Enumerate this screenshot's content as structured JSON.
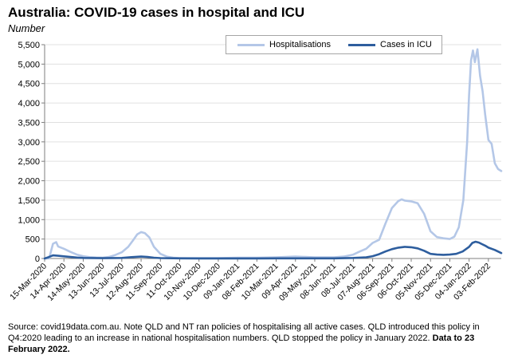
{
  "title": "Australia: COVID-19 cases in hospital and ICU",
  "subtitle": "Number",
  "source_text": "Source: covid19data.com.au.  Note QLD and NT ran policies of hospitalising all active cases. QLD introduced this policy in Q4:2020 leading to an increase in national hospitalisation numbers. QLD stopped the policy in January 2022. ",
  "source_bold": "Data to 23 February 2022.",
  "colors": {
    "hospital": "#b4c7e7",
    "icu": "#2e5e9e",
    "axis": "#7f7f7f",
    "grid": "#e0e0e0"
  },
  "chart_data": {
    "type": "line",
    "ylim": [
      0,
      5500
    ],
    "yticks": [
      "0",
      "500",
      "1,000",
      "1,500",
      "2,000",
      "2,500",
      "3,000",
      "3,500",
      "4,000",
      "4,500",
      "5,000",
      "5,500"
    ],
    "xlim": [
      "2020-03-15",
      "2022-02-23"
    ],
    "xticks": [
      "15-Mar-2020",
      "14-Apr-2020",
      "14-May-2020",
      "13-Jun-2020",
      "13-Jul-2020",
      "12-Aug-2020",
      "11-Sep-2020",
      "11-Oct-2020",
      "10-Nov-2020",
      "10-Dec-2020",
      "09-Jan-2021",
      "08-Feb-2021",
      "10-Mar-2021",
      "09-Apr-2021",
      "09-May-2021",
      "08-Jun-2021",
      "08-Jul-2021",
      "07-Aug-2021",
      "06-Sep-2021",
      "06-Oct-2021",
      "05-Nov-2021",
      "05-Dec-2021",
      "04-Jan-2022",
      "03-Feb-2022"
    ],
    "series": [
      {
        "name": "Hospitalisations",
        "x": [
          "2020-03-15",
          "2020-03-22",
          "2020-03-28",
          "2020-04-02",
          "2020-04-05",
          "2020-04-14",
          "2020-04-24",
          "2020-05-04",
          "2020-05-14",
          "2020-05-24",
          "2020-06-03",
          "2020-06-13",
          "2020-06-23",
          "2020-07-03",
          "2020-07-13",
          "2020-07-23",
          "2020-07-31",
          "2020-08-06",
          "2020-08-12",
          "2020-08-18",
          "2020-08-25",
          "2020-09-01",
          "2020-09-11",
          "2020-09-21",
          "2020-10-01",
          "2020-10-11",
          "2020-11-10",
          "2020-12-10",
          "2021-01-09",
          "2021-02-08",
          "2021-03-10",
          "2021-04-09",
          "2021-05-09",
          "2021-06-08",
          "2021-06-23",
          "2021-07-08",
          "2021-07-18",
          "2021-07-28",
          "2021-08-07",
          "2021-08-17",
          "2021-08-27",
          "2021-09-06",
          "2021-09-16",
          "2021-09-21",
          "2021-09-26",
          "2021-10-06",
          "2021-10-16",
          "2021-10-26",
          "2021-11-05",
          "2021-11-15",
          "2021-11-25",
          "2021-12-05",
          "2021-12-12",
          "2021-12-19",
          "2021-12-26",
          "2022-01-01",
          "2022-01-04",
          "2022-01-07",
          "2022-01-10",
          "2022-01-13",
          "2022-01-17",
          "2022-01-21",
          "2022-01-25",
          "2022-01-29",
          "2022-02-03",
          "2022-02-08",
          "2022-02-13",
          "2022-02-18",
          "2022-02-23"
        ],
        "y": [
          0,
          0,
          380,
          420,
          310,
          250,
          170,
          100,
          60,
          35,
          25,
          20,
          40,
          90,
          160,
          300,
          480,
          620,
          680,
          650,
          540,
          300,
          120,
          50,
          20,
          10,
          10,
          10,
          20,
          20,
          30,
          50,
          30,
          30,
          50,
          100,
          180,
          250,
          400,
          480,
          900,
          1300,
          1480,
          1520,
          1490,
          1470,
          1420,
          1150,
          700,
          550,
          520,
          500,
          560,
          800,
          1500,
          3000,
          4200,
          5100,
          5350,
          5050,
          5380,
          4700,
          4300,
          3700,
          3050,
          2950,
          2450,
          2300,
          2250
        ]
      },
      {
        "name": "Cases in ICU",
        "x": [
          "2020-03-15",
          "2020-03-22",
          "2020-03-28",
          "2020-04-05",
          "2020-04-14",
          "2020-04-24",
          "2020-05-04",
          "2020-05-14",
          "2020-06-13",
          "2020-07-13",
          "2020-07-28",
          "2020-08-12",
          "2020-08-22",
          "2020-09-01",
          "2020-09-11",
          "2020-10-11",
          "2020-11-10",
          "2020-12-10",
          "2021-01-09",
          "2021-02-08",
          "2021-03-10",
          "2021-04-09",
          "2021-05-09",
          "2021-06-08",
          "2021-07-08",
          "2021-07-28",
          "2021-08-07",
          "2021-08-17",
          "2021-08-27",
          "2021-09-06",
          "2021-09-16",
          "2021-09-26",
          "2021-10-06",
          "2021-10-16",
          "2021-10-26",
          "2021-11-05",
          "2021-11-15",
          "2021-11-25",
          "2021-12-05",
          "2021-12-15",
          "2021-12-25",
          "2022-01-04",
          "2022-01-09",
          "2022-01-14",
          "2022-01-19",
          "2022-01-24",
          "2022-01-29",
          "2022-02-03",
          "2022-02-13",
          "2022-02-23"
        ],
        "y": [
          0,
          40,
          80,
          70,
          55,
          40,
          25,
          15,
          8,
          15,
          35,
          50,
          40,
          20,
          10,
          5,
          3,
          3,
          3,
          3,
          5,
          5,
          5,
          5,
          15,
          30,
          60,
          110,
          180,
          240,
          280,
          300,
          290,
          260,
          200,
          120,
          100,
          95,
          100,
          120,
          180,
          300,
          400,
          430,
          410,
          370,
          330,
          280,
          220,
          140
        ]
      }
    ]
  }
}
